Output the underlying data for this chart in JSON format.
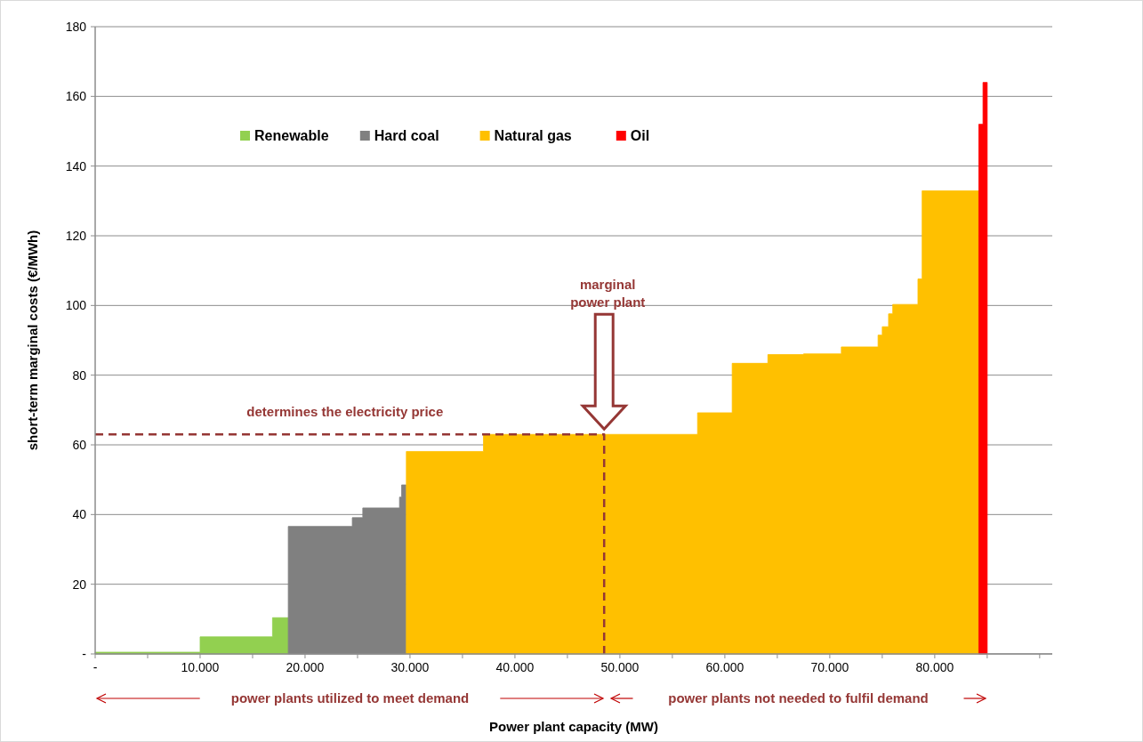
{
  "chart_data": {
    "type": "area",
    "xlabel": "Power plant capacity (MW)",
    "ylabel": "short-term marginal costs (€/MWh)",
    "xlim": [
      0,
      91200
    ],
    "ylim": [
      0,
      180
    ],
    "xticks": [
      {
        "value": 0,
        "label": "-"
      },
      {
        "value": 5000,
        "label": null
      },
      {
        "value": 10000,
        "label": "10.000"
      },
      {
        "value": 15000,
        "label": null
      },
      {
        "value": 20000,
        "label": "20.000"
      },
      {
        "value": 25000,
        "label": null
      },
      {
        "value": 30000,
        "label": "30.000"
      },
      {
        "value": 35000,
        "label": null
      },
      {
        "value": 40000,
        "label": "40.000"
      },
      {
        "value": 45000,
        "label": null
      },
      {
        "value": 50000,
        "label": "50.000"
      },
      {
        "value": 55000,
        "label": null
      },
      {
        "value": 60000,
        "label": "60.000"
      },
      {
        "value": 65000,
        "label": null
      },
      {
        "value": 70000,
        "label": "70.000"
      },
      {
        "value": 75000,
        "label": null
      },
      {
        "value": 80000,
        "label": "80.000"
      },
      {
        "value": 85000,
        "label": null
      },
      {
        "value": 90000,
        "label": null
      }
    ],
    "yticks": [
      {
        "value": 0,
        "label": "-"
      },
      20,
      40,
      60,
      80,
      100,
      120,
      140,
      160,
      180
    ],
    "grid": "y",
    "legend": "top",
    "series": [
      {
        "name": "Renewable",
        "color": "#92d050",
        "x": [
          0,
          10000,
          16900,
          18400
        ],
        "values": [
          0.5,
          4.9,
          10.4,
          10.4
        ]
      },
      {
        "name": "Hard coal",
        "color": "#808080",
        "x": [
          18400,
          24500,
          25500,
          29000,
          29200,
          29650
        ],
        "values": [
          36.6,
          39.1,
          41.9,
          45,
          48.5,
          48.5
        ]
      },
      {
        "name": "Natural gas",
        "color": "#ffc000",
        "x": [
          29650,
          37000,
          57400,
          60700,
          64100,
          67500,
          71100,
          74600,
          75000,
          75600,
          76000,
          78400,
          78800,
          84200
        ],
        "values": [
          58.1,
          63,
          69.2,
          83.4,
          85.9,
          86.1,
          88.1,
          91.5,
          93.9,
          97.6,
          100.3,
          107.6,
          132.9,
          132.9
        ]
      },
      {
        "name": "Oil",
        "color": "#ff0000",
        "x": [
          84200,
          84600,
          85000
        ],
        "values": [
          152,
          164,
          164
        ]
      },
      {
        "type": "line",
        "color": "#953735",
        "line_style": "dashed",
        "x": [
          0,
          48500,
          48500
        ],
        "values": [
          63,
          63,
          0
        ]
      }
    ],
    "annotations": [
      {
        "text": "determines the electricity price",
        "x": 23800,
        "y": 63
      },
      "marginal power plant",
      "power plants utilized to meet demand",
      "power plants not needed to fulfil demand"
    ]
  }
}
